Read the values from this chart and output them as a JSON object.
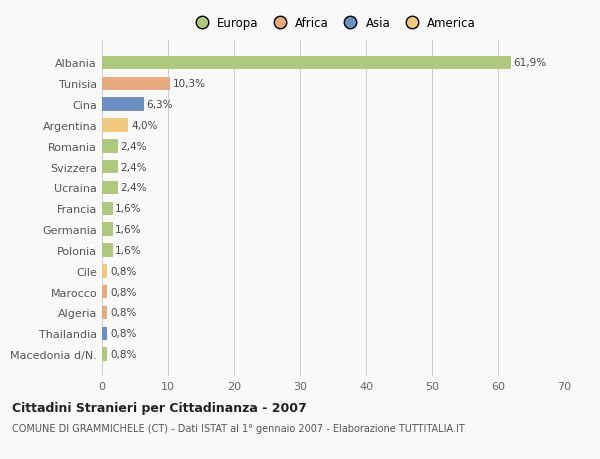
{
  "countries": [
    "Albania",
    "Tunisia",
    "Cina",
    "Argentina",
    "Romania",
    "Svizzera",
    "Ucraina",
    "Francia",
    "Germania",
    "Polonia",
    "Cile",
    "Marocco",
    "Algeria",
    "Thailandia",
    "Macedonia d/N."
  ],
  "values": [
    61.9,
    10.3,
    6.3,
    4.0,
    2.4,
    2.4,
    2.4,
    1.6,
    1.6,
    1.6,
    0.8,
    0.8,
    0.8,
    0.8,
    0.8
  ],
  "labels": [
    "61,9%",
    "10,3%",
    "6,3%",
    "4,0%",
    "2,4%",
    "2,4%",
    "2,4%",
    "1,6%",
    "1,6%",
    "1,6%",
    "0,8%",
    "0,8%",
    "0,8%",
    "0,8%",
    "0,8%"
  ],
  "colors": [
    "#aec97e",
    "#e8a97e",
    "#6e8fc4",
    "#f0c97e",
    "#aec97e",
    "#aec97e",
    "#aec97e",
    "#aec97e",
    "#aec97e",
    "#aec97e",
    "#f0c97e",
    "#e8a97e",
    "#e8a97e",
    "#6e8fc4",
    "#aec97e"
  ],
  "legend_labels": [
    "Europa",
    "Africa",
    "Asia",
    "America"
  ],
  "legend_colors": [
    "#aec97e",
    "#e8a97e",
    "#6e8fc4",
    "#f0c97e"
  ],
  "xlim": [
    0,
    70
  ],
  "xticks": [
    0,
    10,
    20,
    30,
    40,
    50,
    60,
    70
  ],
  "title": "Cittadini Stranieri per Cittadinanza - 2007",
  "subtitle": "COMUNE DI GRAMMICHELE (CT) - Dati ISTAT al 1° gennaio 2007 - Elaborazione TUTTITALIA.IT",
  "background_color": "#f9f9f9",
  "grid_color": "#cccccc"
}
